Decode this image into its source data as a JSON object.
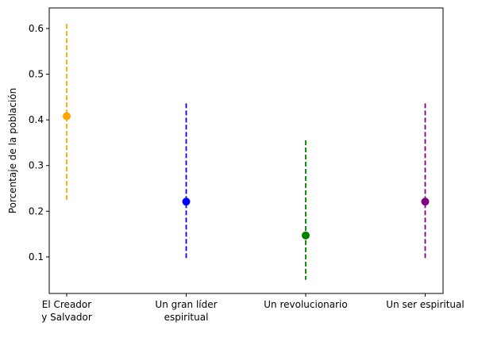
{
  "chart_data": {
    "type": "scatter",
    "title": "",
    "xlabel": "",
    "ylabel": "Porcentaje de la población",
    "ylim": [
      0.02,
      0.645
    ],
    "yticks": [
      0.1,
      0.2,
      0.3,
      0.4,
      0.5,
      0.6
    ],
    "ytick_labels": [
      "0.1",
      "0.2",
      "0.3",
      "0.4",
      "0.5",
      "0.6"
    ],
    "grid": false,
    "legend": "none",
    "categories": [
      [
        "El Creador",
        "y Salvador"
      ],
      [
        "Un gran líder",
        "espiritual"
      ],
      [
        "Un revolucionario"
      ],
      [
        "Un ser espiritual"
      ]
    ],
    "points": [
      {
        "value": 0.408,
        "low": 0.225,
        "high": 0.61,
        "color": "#ffa500"
      },
      {
        "value": 0.221,
        "low": 0.095,
        "high": 0.436,
        "color": "#0000ff"
      },
      {
        "value": 0.147,
        "low": 0.05,
        "high": 0.355,
        "color": "#008000"
      },
      {
        "value": 0.221,
        "low": 0.095,
        "high": 0.436,
        "color": "#800080"
      }
    ],
    "error_bar_style": "dashed"
  }
}
